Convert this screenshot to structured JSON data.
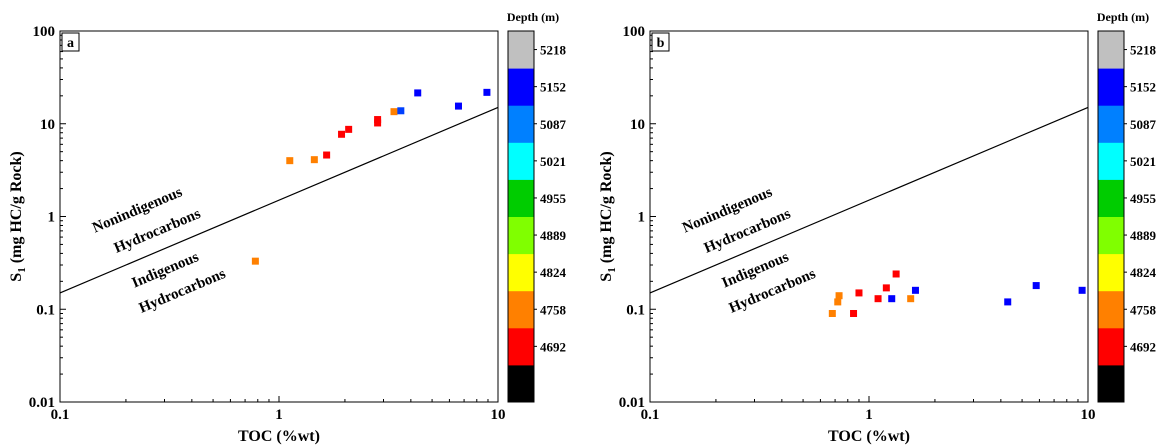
{
  "chart_data": [
    {
      "type": "scatter",
      "panel_label": "a",
      "xlabel": "TOC (%wt)",
      "ylabel_main": "S",
      "ylabel_sub": "1",
      "ylabel_rest": " (mg HC/g Rock)",
      "xscale": "log",
      "yscale": "log",
      "xlim": [
        0.1,
        10
      ],
      "ylim": [
        0.01,
        100
      ],
      "x_ticks": [
        {
          "value": 0.1,
          "label": "0.1"
        },
        {
          "value": 1,
          "label": "1"
        },
        {
          "value": 10,
          "label": "10"
        }
      ],
      "y_ticks": [
        {
          "value": 0.01,
          "label": "0.01"
        },
        {
          "value": 0.1,
          "label": "0.1"
        },
        {
          "value": 1,
          "label": "1"
        },
        {
          "value": 10,
          "label": "10"
        },
        {
          "value": 100,
          "label": "100"
        }
      ],
      "divider_line": {
        "x": [
          0.1,
          10
        ],
        "y": [
          0.15,
          15
        ]
      },
      "annotations": {
        "upper": [
          "Nonindigenous",
          "Hydrocarbons"
        ],
        "lower": [
          "Indigenous",
          "Hydrocarbons"
        ]
      },
      "points": [
        {
          "x": 0.78,
          "y": 0.33,
          "color": "#ff8000"
        },
        {
          "x": 1.12,
          "y": 4.0,
          "color": "#ff8000"
        },
        {
          "x": 1.45,
          "y": 4.1,
          "color": "#ff8000"
        },
        {
          "x": 1.65,
          "y": 4.6,
          "color": "#ff0000"
        },
        {
          "x": 1.93,
          "y": 7.7,
          "color": "#ff0000"
        },
        {
          "x": 2.08,
          "y": 8.7,
          "color": "#ff0000"
        },
        {
          "x": 2.82,
          "y": 10.2,
          "color": "#ff0000"
        },
        {
          "x": 2.82,
          "y": 11.1,
          "color": "#ff0000"
        },
        {
          "x": 3.35,
          "y": 13.5,
          "color": "#ff8000"
        },
        {
          "x": 3.6,
          "y": 13.8,
          "color": "#0040ff"
        },
        {
          "x": 4.3,
          "y": 21.5,
          "color": "#0000ff"
        },
        {
          "x": 6.6,
          "y": 15.5,
          "color": "#0000ff"
        },
        {
          "x": 8.9,
          "y": 21.8,
          "color": "#0000ff"
        }
      ]
    },
    {
      "type": "scatter",
      "panel_label": "b",
      "xlabel": "TOC (%wt)",
      "ylabel_main": "S",
      "ylabel_sub": "1",
      "ylabel_rest": " (mg HC/g Rock)",
      "xscale": "log",
      "yscale": "log",
      "xlim": [
        0.1,
        10
      ],
      "ylim": [
        0.01,
        100
      ],
      "x_ticks": [
        {
          "value": 0.1,
          "label": "0.1"
        },
        {
          "value": 1,
          "label": "1"
        },
        {
          "value": 10,
          "label": "10"
        }
      ],
      "y_ticks": [
        {
          "value": 0.01,
          "label": "0.01"
        },
        {
          "value": 0.1,
          "label": "0.1"
        },
        {
          "value": 1,
          "label": "1"
        },
        {
          "value": 10,
          "label": "10"
        },
        {
          "value": 100,
          "label": "100"
        }
      ],
      "divider_line": {
        "x": [
          0.1,
          10
        ],
        "y": [
          0.15,
          15
        ]
      },
      "annotations": {
        "upper": [
          "Nonindigenous",
          "Hydrocarbons"
        ],
        "lower": [
          "Indigenous",
          "Hydrocarbons"
        ]
      },
      "points": [
        {
          "x": 0.68,
          "y": 0.09,
          "color": "#ff8000"
        },
        {
          "x": 0.72,
          "y": 0.12,
          "color": "#ff8000"
        },
        {
          "x": 0.73,
          "y": 0.14,
          "color": "#ff8000"
        },
        {
          "x": 0.85,
          "y": 0.09,
          "color": "#ff0000"
        },
        {
          "x": 0.9,
          "y": 0.15,
          "color": "#ff0000"
        },
        {
          "x": 1.1,
          "y": 0.13,
          "color": "#ff0000"
        },
        {
          "x": 1.2,
          "y": 0.17,
          "color": "#ff0000"
        },
        {
          "x": 1.27,
          "y": 0.13,
          "color": "#0000ff"
        },
        {
          "x": 1.33,
          "y": 0.24,
          "color": "#ff0000"
        },
        {
          "x": 1.55,
          "y": 0.13,
          "color": "#ff8000"
        },
        {
          "x": 1.63,
          "y": 0.16,
          "color": "#0000ff"
        },
        {
          "x": 4.3,
          "y": 0.12,
          "color": "#0000ff"
        },
        {
          "x": 5.8,
          "y": 0.18,
          "color": "#0000ff"
        },
        {
          "x": 9.4,
          "y": 0.16,
          "color": "#0000ff"
        }
      ]
    }
  ],
  "colorbar": {
    "title": "Depth (m)",
    "segments": [
      "#000000",
      "#ff0000",
      "#ff8000",
      "#ffff00",
      "#80ff00",
      "#00cc00",
      "#00ffff",
      "#0080ff",
      "#0000ff",
      "#c0c0c0"
    ],
    "tick_labels": [
      "4692",
      "4758",
      "4824",
      "4889",
      "4955",
      "5021",
      "5087",
      "5152",
      "5218"
    ]
  }
}
